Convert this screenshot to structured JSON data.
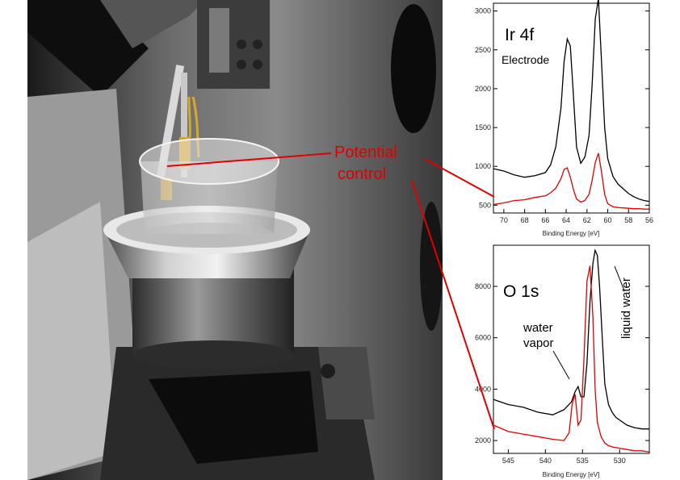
{
  "photo": {
    "description_icon": "vacuum-chamber-photo"
  },
  "callout": {
    "line1": "Potential",
    "line2": "control",
    "color": "#e00000"
  },
  "chart_data": [
    {
      "type": "line",
      "title": "Ir 4f",
      "subtitle": "Electrode",
      "xlabel": "Binding Energy [eV]",
      "ylabel": "",
      "xlim": [
        71,
        56
      ],
      "ylim": [
        400,
        3100
      ],
      "x_ticks": [
        70,
        68,
        66,
        64,
        62,
        60,
        58,
        56
      ],
      "y_ticks": [
        500,
        1000,
        1500,
        2000,
        2500,
        3000
      ],
      "series": [
        {
          "color": "#000000",
          "x": [
            71,
            70,
            69,
            68,
            67,
            66,
            65.5,
            65,
            64.5,
            64.2,
            63.9,
            63.6,
            63.3,
            63,
            62.6,
            62.2,
            61.8,
            61.5,
            61.2,
            60.9,
            60.6,
            60.3,
            60,
            59.5,
            59,
            58.5,
            58,
            57.5,
            57,
            56.5,
            56
          ],
          "y": [
            970,
            940,
            890,
            860,
            880,
            920,
            1020,
            1250,
            1750,
            2350,
            2640,
            2550,
            1900,
            1250,
            1040,
            1120,
            1400,
            2050,
            2900,
            3160,
            2350,
            1500,
            1100,
            870,
            770,
            710,
            650,
            610,
            580,
            560,
            550
          ]
        },
        {
          "color": "#e00000",
          "x": [
            71,
            70,
            69,
            68,
            67,
            66,
            65.5,
            65,
            64.5,
            64.2,
            63.9,
            63.6,
            63.3,
            63,
            62.6,
            62.2,
            61.8,
            61.5,
            61.2,
            60.9,
            60.6,
            60.3,
            60,
            59.5,
            59,
            58.5,
            58,
            57.5,
            57,
            56.5,
            56
          ],
          "y": [
            510,
            530,
            560,
            570,
            600,
            620,
            660,
            720,
            840,
            960,
            980,
            860,
            700,
            580,
            540,
            560,
            640,
            820,
            1050,
            1170,
            930,
            640,
            520,
            480,
            470,
            465,
            460,
            455,
            455,
            450,
            450
          ]
        }
      ]
    },
    {
      "type": "line",
      "title": "O 1s",
      "xlabel": "Binding Energy [eV]",
      "ylabel": "",
      "xlim": [
        547,
        526
      ],
      "ylim": [
        1500,
        9600
      ],
      "x_ticks": [
        545,
        540,
        535,
        530
      ],
      "y_ticks": [
        2000,
        4000,
        6000,
        8000
      ],
      "annotations": [
        {
          "text_lines": [
            "water",
            "vapor"
          ]
        },
        {
          "text_lines": [
            "liquid water"
          ],
          "rotated": true
        }
      ],
      "series": [
        {
          "color": "#000000",
          "x": [
            547,
            545,
            543,
            541,
            539,
            537.5,
            536.5,
            536,
            535.6,
            535.2,
            534.8,
            534.4,
            534,
            533.6,
            533.3,
            533,
            532.7,
            532.3,
            532,
            531.5,
            531,
            530.5,
            530,
            529,
            528,
            527,
            526
          ],
          "y": [
            3600,
            3400,
            3300,
            3100,
            3000,
            3200,
            3500,
            3900,
            4100,
            3700,
            3700,
            5000,
            7400,
            8900,
            9400,
            9200,
            8000,
            5800,
            4200,
            3400,
            3100,
            2900,
            2800,
            2600,
            2500,
            2450,
            2450
          ]
        },
        {
          "color": "#e00000",
          "x": [
            547,
            545,
            543,
            541,
            539,
            537.5,
            536.8,
            536.4,
            536,
            535.6,
            535.2,
            534.8,
            534.4,
            534,
            533.6,
            533.3,
            533,
            532.5,
            532,
            531.5,
            531,
            530,
            529,
            528,
            527,
            526
          ],
          "y": [
            2600,
            2350,
            2250,
            2150,
            2050,
            2000,
            2300,
            3400,
            3800,
            2600,
            2800,
            5200,
            8200,
            8800,
            6800,
            4000,
            2700,
            2150,
            1900,
            1800,
            1750,
            1700,
            1650,
            1600,
            1600,
            1550
          ]
        }
      ]
    }
  ]
}
